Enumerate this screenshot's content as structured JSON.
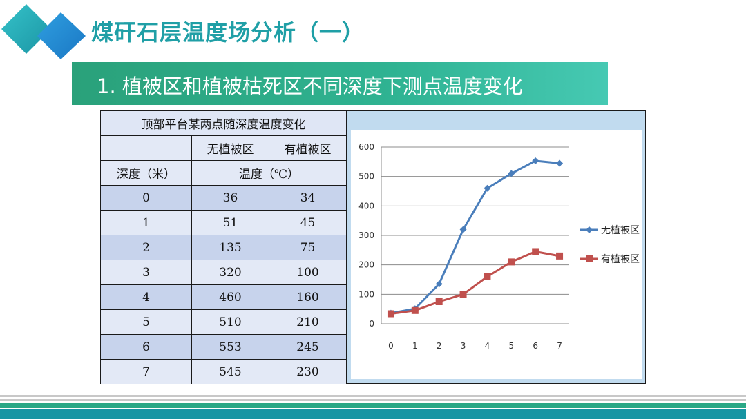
{
  "header": {
    "title": "煤矸石层温度场分析（一）",
    "subtitle": "1. 植被区和植被枯死区不同深度下测点温度变化"
  },
  "colors": {
    "accent_teal": "#1f9fa6",
    "series_blue": "#4a7ebb",
    "series_red": "#c0504d"
  },
  "table": {
    "title": "顶部平台某两点随深度温度变化",
    "col_headers": [
      "无植被区",
      "有植被区"
    ],
    "depth_label": "深度（米）",
    "temp_label": "温度（℃）",
    "rows": [
      [
        "0",
        "36",
        "34"
      ],
      [
        "1",
        "51",
        "45"
      ],
      [
        "2",
        "135",
        "75"
      ],
      [
        "3",
        "320",
        "100"
      ],
      [
        "4",
        "460",
        "160"
      ],
      [
        "5",
        "510",
        "210"
      ],
      [
        "6",
        "553",
        "245"
      ],
      [
        "7",
        "545",
        "230"
      ]
    ]
  },
  "chart_data": {
    "type": "line",
    "x": [
      0,
      1,
      2,
      3,
      4,
      5,
      6,
      7
    ],
    "series": [
      {
        "name": "无植被区",
        "values": [
          36,
          51,
          135,
          320,
          460,
          510,
          553,
          545
        ],
        "color": "#4a7ebb",
        "marker": "diamond"
      },
      {
        "name": "有植被区",
        "values": [
          34,
          45,
          75,
          100,
          160,
          210,
          245,
          230
        ],
        "color": "#c0504d",
        "marker": "square"
      }
    ],
    "ylim": [
      0,
      600
    ],
    "yticks": [
      0,
      100,
      200,
      300,
      400,
      500,
      600
    ],
    "grid": true,
    "legend": "right"
  }
}
